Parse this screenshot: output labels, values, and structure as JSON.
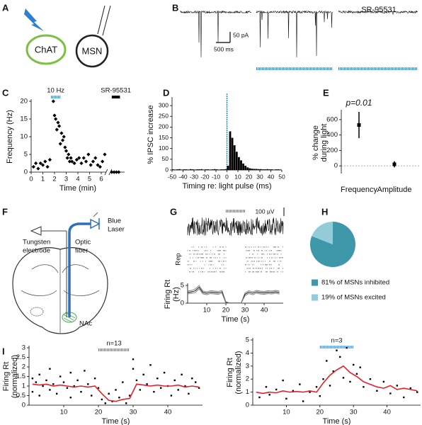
{
  "panel_labels": [
    "A",
    "B",
    "C",
    "D",
    "E",
    "F",
    "G",
    "H",
    "I"
  ],
  "panel_a": {
    "cell_1": "ChAT",
    "cell_2": "MSN"
  },
  "panel_b": {
    "drug": "SR-95531",
    "scale_current": "50 pA",
    "scale_time": "500 ms"
  },
  "panel_f": {
    "laser": [
      "Blue",
      "Laser"
    ],
    "electrode": [
      "Tungsten",
      "electrode"
    ],
    "fiber": [
      "Optic",
      "fiber"
    ],
    "region": "NAc"
  },
  "panel_g": {
    "scale": "100 µV",
    "raster": "Rep"
  },
  "chart_data": [
    {
      "type": "scatter",
      "xlabel": "Time (min)",
      "ylabel": "Frequency (Hz)",
      "xlim": [
        0,
        8
      ],
      "ylim": [
        0,
        20
      ],
      "xticks": [
        0,
        1,
        2,
        3,
        4,
        5,
        6
      ],
      "yticks": [
        0,
        5,
        10,
        15,
        20
      ],
      "axis_break": 6.6,
      "light": [
        1.7,
        2.5
      ],
      "light_label": "10 Hz",
      "drug_block": [
        6.9,
        7.6
      ],
      "drug_label": "SR-95531",
      "series": [
        {
          "mode": "markers",
          "marker": "diamond",
          "color": "#000",
          "x": [
            0.2,
            0.4,
            0.6,
            0.8,
            1.0,
            1.2,
            1.4,
            1.6,
            1.9,
            2.0,
            2.1,
            2.2,
            2.3,
            2.4,
            2.5,
            2.6,
            2.7,
            2.8,
            2.9,
            3.0,
            3.1,
            3.2,
            3.3,
            3.4,
            3.5,
            3.7,
            3.9,
            4.1,
            4.3,
            4.5,
            4.7,
            4.9,
            5.1,
            5.3,
            5.5,
            5.7,
            5.9,
            6.1,
            6.3,
            6.9,
            7.1,
            7.3,
            7.5
          ],
          "values": [
            1.5,
            2.5,
            1,
            2.5,
            2,
            3,
            1.5,
            3.5,
            20,
            16,
            15,
            12,
            14,
            13,
            8,
            11,
            9,
            10,
            7,
            6,
            4,
            5,
            3,
            4,
            3,
            2.5,
            3.5,
            4,
            2.5,
            4,
            3,
            5,
            2,
            3,
            4,
            2,
            1.5,
            3,
            5,
            0,
            0,
            0,
            0
          ]
        }
      ]
    },
    {
      "type": "histogram",
      "xlabel": "Timing re: light pulse (ms)",
      "ylabel": "% IPSC increase",
      "xlim": [
        -50,
        50
      ],
      "ylim": [
        0,
        330
      ],
      "xticks": [
        -50,
        -40,
        -30,
        -20,
        -10,
        0,
        10,
        20,
        30,
        40,
        50
      ],
      "yticks": [
        0,
        50,
        100,
        150,
        200,
        250,
        300
      ],
      "light_pulse": 0,
      "color": "#000",
      "bins": [
        -50,
        -48,
        -46,
        -44,
        -42,
        -40,
        -38,
        -36,
        -34,
        -32,
        -30,
        -28,
        -26,
        -24,
        -22,
        -20,
        -18,
        -16,
        -14,
        -12,
        -10,
        -8,
        -6,
        -4,
        -2,
        0,
        2,
        4,
        6,
        8,
        10,
        12,
        14,
        16,
        18,
        20,
        22,
        24,
        26,
        28,
        30,
        32,
        34,
        36,
        38,
        40,
        42,
        44,
        46,
        48,
        50
      ],
      "counts": [
        3,
        2,
        3,
        4,
        2,
        3,
        3,
        2,
        4,
        3,
        2,
        3,
        3,
        4,
        2,
        3,
        3,
        2,
        3,
        4,
        3,
        2,
        3,
        3,
        4,
        20,
        180,
        150,
        115,
        85,
        60,
        45,
        30,
        20,
        12,
        8,
        6,
        5,
        5,
        4,
        4,
        3,
        3,
        4,
        3,
        3,
        2,
        3,
        3,
        2
      ]
    },
    {
      "type": "errorbar",
      "ylabel": [
        "% change",
        "during light"
      ],
      "ylim": [
        -100,
        700
      ],
      "yticks": [
        0,
        200,
        400,
        600
      ],
      "categories": [
        "Frequency",
        "Amplitude"
      ],
      "values": [
        530,
        20
      ],
      "errors": [
        170,
        40
      ],
      "annotation": "p=0.01",
      "reference_line": 0,
      "color": "#000"
    },
    {
      "type": "line",
      "xlabel": "Time (s)",
      "ylabel": [
        "Firing Rt",
        "(Hz)"
      ],
      "xlim": [
        0,
        50
      ],
      "ylim": [
        0,
        5
      ],
      "xticks": [
        10,
        20,
        30,
        40
      ],
      "yticks": [
        0,
        5
      ],
      "light": [
        20,
        30
      ],
      "x": [
        0,
        2,
        4,
        6,
        8,
        10,
        12,
        14,
        16,
        18,
        20,
        22,
        24,
        26,
        28,
        30,
        32,
        34,
        36,
        38,
        40,
        42,
        44,
        46,
        48
      ],
      "series": [
        {
          "color": "#000",
          "values": [
            3,
            3.2,
            3.5,
            4.5,
            3,
            2.8,
            3.1,
            3,
            2.9,
            3.2,
            0.2,
            0,
            0,
            0,
            0,
            2.5,
            3.1,
            2.8,
            3.2,
            3,
            2.9,
            3.1,
            3,
            3.2,
            3
          ]
        },
        {
          "color": "#777",
          "values": [
            3.4,
            3.6,
            4,
            5,
            3.4,
            3.2,
            3.5,
            3.4,
            3.3,
            3.6,
            0.4,
            0.1,
            0.1,
            0.1,
            0.1,
            2.9,
            3.5,
            3.2,
            3.6,
            3.4,
            3.3,
            3.5,
            3.4,
            3.6,
            3.4
          ]
        },
        {
          "color": "#777",
          "values": [
            2.6,
            2.8,
            3,
            4,
            2.6,
            2.4,
            2.7,
            2.6,
            2.5,
            2.8,
            0,
            0,
            0,
            0,
            0,
            2.1,
            2.7,
            2.4,
            2.8,
            2.6,
            2.5,
            2.7,
            2.6,
            2.8,
            2.6
          ]
        }
      ]
    },
    {
      "type": "pie",
      "values": [
        81,
        19
      ],
      "colors": [
        "#3f97aa",
        "#93cbd9"
      ],
      "labels": [
        "81% of MSNs inhibited",
        "19% of MSNs excited"
      ]
    },
    {
      "type": "scatter",
      "xlabel": "Time (s)",
      "ylabel": [
        "Firing Rt",
        "(normalized)"
      ],
      "xlim": [
        0,
        50
      ],
      "ylim": [
        0,
        3
      ],
      "xticks": [
        10,
        20,
        30,
        40
      ],
      "yticks": [
        0,
        0.5,
        1,
        1.5,
        2,
        2.5,
        3
      ],
      "light": [
        20,
        29
      ],
      "light_label": "n=13",
      "series": [
        {
          "mode": "markers",
          "marker": "square",
          "color": "#000",
          "x": [
            1,
            1,
            2,
            3,
            3,
            4,
            5,
            6,
            6,
            7,
            8,
            9,
            10,
            11,
            12,
            12,
            13,
            14,
            15,
            16,
            17,
            18,
            19,
            20,
            21,
            22,
            23,
            24,
            25,
            26,
            27,
            28,
            29,
            30,
            30,
            31,
            32,
            33,
            34,
            35,
            36,
            37,
            38,
            39,
            40,
            41,
            42,
            43,
            44,
            45,
            46,
            47,
            48,
            49
          ],
          "values": [
            1.4,
            0.7,
            1.2,
            0.5,
            1.6,
            1.0,
            1.3,
            0.8,
            1.9,
            1.1,
            0.6,
            1.5,
            1.2,
            0.9,
            1.7,
            0.4,
            1.0,
            1.3,
            0.7,
            1.8,
            1.1,
            0.5,
            1.4,
            0.9,
            0.3,
            0.1,
            0.6,
            0.2,
            0.8,
            0.4,
            1.2,
            0.1,
            0.5,
            1.9,
            2.4,
            1.3,
            0.8,
            1.6,
            1.1,
            2.1,
            0.7,
            1.4,
            0.9,
            1.7,
            1.0,
            0.5,
            1.3,
            0.8,
            1.6,
            1.0,
            0.6,
            1.4,
            1.2,
            0.9
          ]
        },
        {
          "mode": "lines",
          "color": "#e8202a",
          "x": [
            1,
            3,
            5,
            7,
            9,
            11,
            13,
            15,
            17,
            19,
            21,
            23,
            25,
            27,
            29,
            31,
            33,
            35,
            37,
            39,
            41,
            43,
            45,
            47,
            49
          ],
          "values": [
            1.1,
            1.05,
            1.1,
            1.0,
            1.05,
            1.0,
            0.95,
            1.0,
            0.95,
            1.0,
            0.6,
            0.25,
            0.2,
            0.3,
            0.35,
            1.1,
            1.05,
            1.0,
            1.05,
            1.0,
            1.0,
            1.05,
            0.95,
            1.0,
            0.95
          ]
        }
      ]
    },
    {
      "type": "scatter",
      "xlabel": "Time (s)",
      "ylabel": [
        "Firing Rt",
        "(normalized)"
      ],
      "xlim": [
        0,
        50
      ],
      "ylim": [
        0,
        5
      ],
      "xticks": [
        10,
        20,
        30,
        40
      ],
      "yticks": [
        0,
        1,
        2,
        3,
        4,
        5
      ],
      "light": [
        20,
        30
      ],
      "light_label": "n=3",
      "series": [
        {
          "mode": "markers",
          "marker": "square",
          "color": "#000",
          "x": [
            2,
            4,
            5,
            7,
            9,
            10,
            12,
            14,
            15,
            17,
            19,
            20,
            21,
            22,
            23,
            24,
            25,
            26,
            27,
            28,
            29,
            30,
            31,
            32,
            33,
            35,
            37,
            39,
            41,
            43,
            45,
            47,
            49
          ],
          "values": [
            0.6,
            1.4,
            0.8,
            1.2,
            1.9,
            0.5,
            1.1,
            1.6,
            0.3,
            1.0,
            1.4,
            0.7,
            2.0,
            3.4,
            1.5,
            2.6,
            4.2,
            3.7,
            2.1,
            4.4,
            1.8,
            3.1,
            2.4,
            2.9,
            1.4,
            2.0,
            1.1,
            1.8,
            0.9,
            1.5,
            0.6,
            1.3,
            1.0
          ]
        },
        {
          "mode": "lines",
          "color": "#e8202a",
          "x": [
            1,
            3,
            5,
            7,
            9,
            11,
            13,
            15,
            17,
            19,
            21,
            23,
            25,
            27,
            29,
            31,
            33,
            35,
            37,
            39,
            41,
            43,
            45,
            47,
            49
          ],
          "values": [
            1.0,
            0.9,
            1.0,
            0.95,
            1.1,
            1.0,
            1.05,
            1.0,
            1.1,
            1.0,
            1.7,
            2.3,
            2.7,
            3.0,
            2.5,
            2.2,
            1.8,
            1.6,
            1.4,
            1.3,
            1.5,
            1.2,
            1.3,
            1.2,
            1.1
          ]
        }
      ]
    }
  ]
}
